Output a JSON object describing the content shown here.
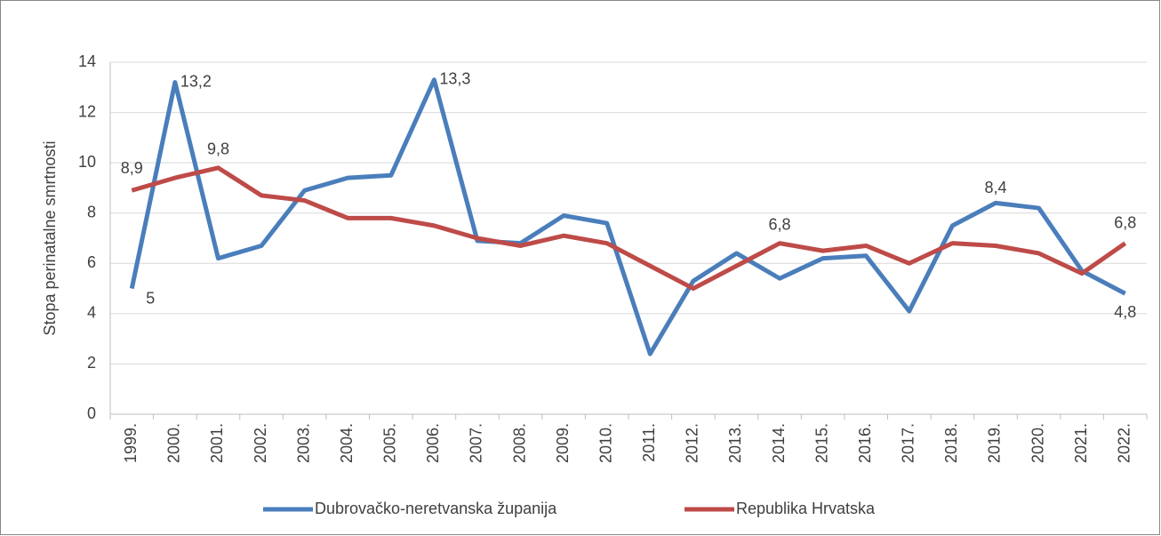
{
  "chart_data": {
    "type": "line",
    "y_label": "Stopa perinatalne smrtnosti",
    "categories": [
      "1999.",
      "2000.",
      "2001.",
      "2002.",
      "2003.",
      "2004.",
      "2005.",
      "2006.",
      "2007.",
      "2008.",
      "2009.",
      "2010.",
      "2011.",
      "2012.",
      "2013.",
      "2014.",
      "2015.",
      "2016.",
      "2017.",
      "2018.",
      "2019.",
      "2020.",
      "2021.",
      "2022."
    ],
    "series": [
      {
        "name": "Dubrovačko-neretvanska županija",
        "color": "#4a7ebb",
        "values": [
          5,
          13.2,
          6.2,
          6.7,
          8.9,
          9.4,
          9.5,
          13.3,
          6.9,
          6.8,
          7.9,
          7.6,
          2.4,
          5.3,
          6.4,
          5.4,
          6.2,
          6.3,
          4.1,
          7.5,
          8.4,
          8.2,
          5.7,
          4.8
        ],
        "value_labels": [
          "5",
          "13,2",
          null,
          null,
          null,
          null,
          null,
          "13,3",
          null,
          null,
          null,
          null,
          null,
          null,
          null,
          null,
          null,
          null,
          null,
          null,
          "8,4",
          null,
          null,
          "4,8"
        ]
      },
      {
        "name": "Republika Hrvatska",
        "color": "#be4b48",
        "values": [
          8.9,
          9.4,
          9.8,
          8.7,
          8.5,
          7.8,
          7.8,
          7.5,
          7.0,
          6.7,
          7.1,
          6.8,
          5.9,
          5.0,
          5.9,
          6.8,
          6.5,
          6.7,
          6.0,
          6.8,
          6.7,
          6.4,
          5.6,
          6.8
        ],
        "value_labels": [
          "8,9",
          null,
          "9,8",
          null,
          null,
          null,
          null,
          null,
          null,
          null,
          null,
          null,
          null,
          null,
          null,
          "6,8",
          null,
          null,
          null,
          null,
          null,
          null,
          null,
          "6,8"
        ]
      }
    ],
    "ylim": [
      0,
      14
    ],
    "yticks": [
      0,
      2,
      4,
      6,
      8,
      10,
      12,
      14
    ],
    "grid": true,
    "legend": "bottom"
  }
}
